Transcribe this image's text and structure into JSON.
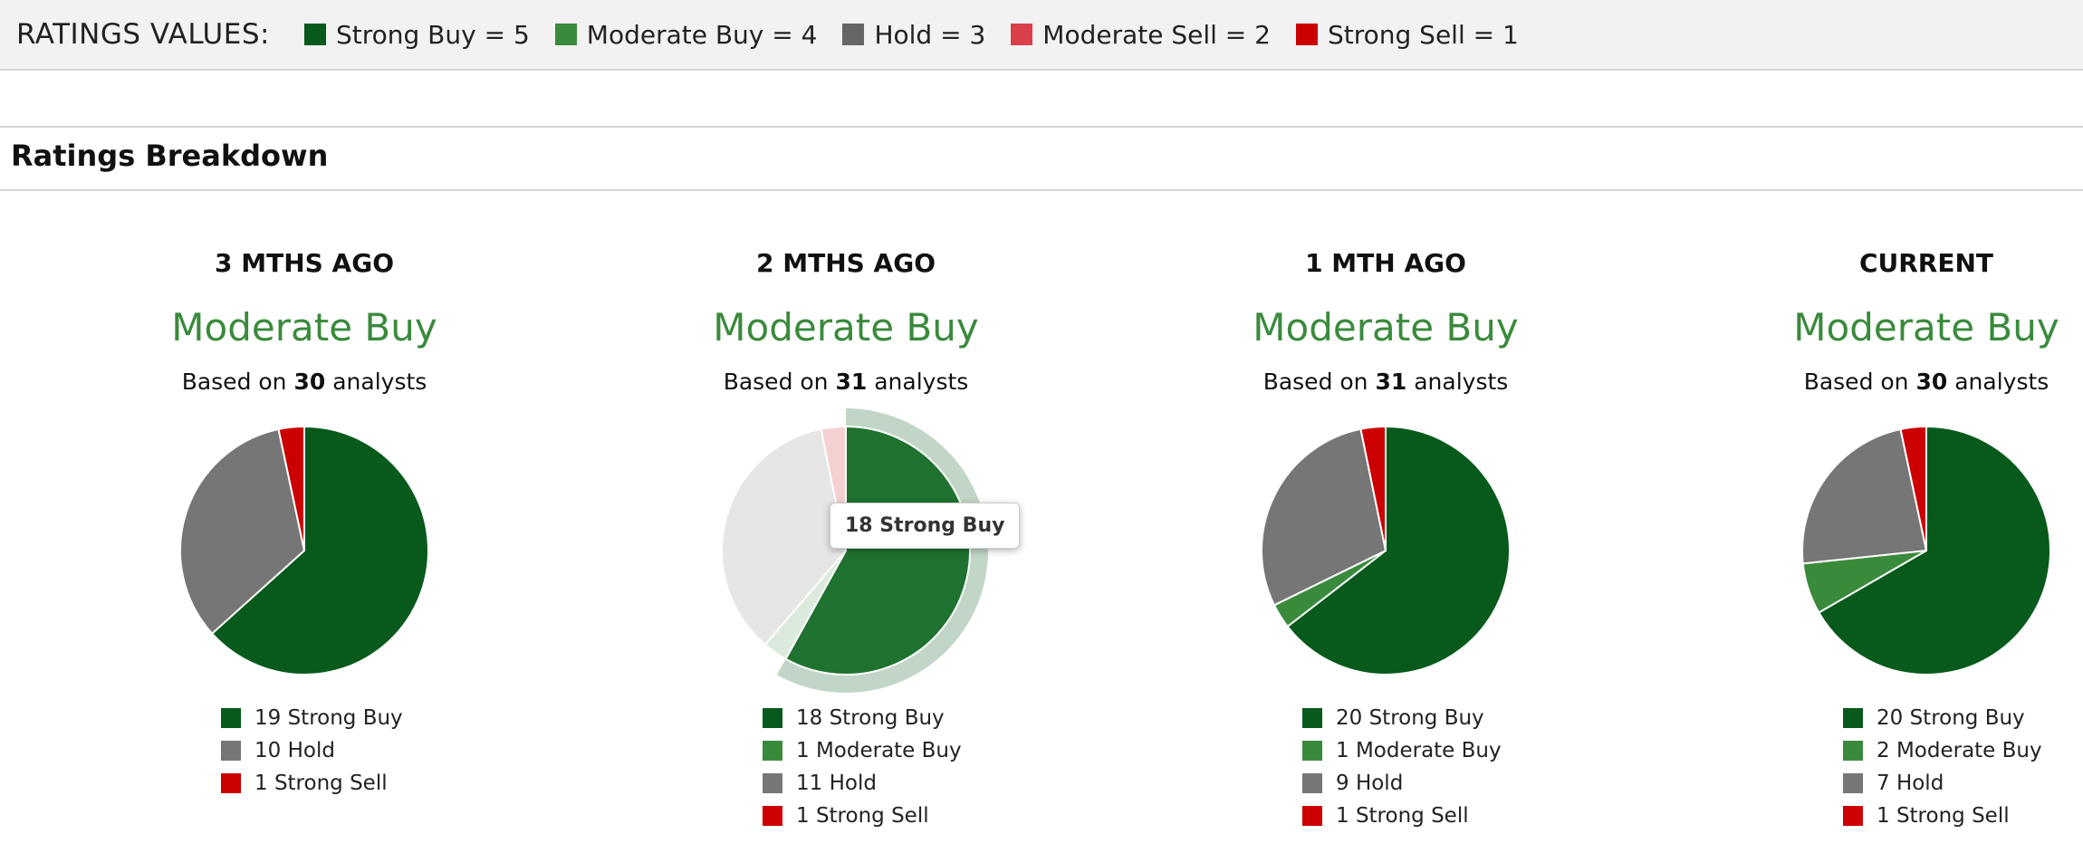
{
  "ratings_values": {
    "title": "RATINGS VALUES:",
    "items": [
      {
        "label": "Strong Buy = 5",
        "color": "#075a1c"
      },
      {
        "label": "Moderate Buy = 4",
        "color": "#3a8a3c"
      },
      {
        "label": "Hold = 3",
        "color": "#666666"
      },
      {
        "label": "Moderate Sell = 2",
        "color": "#d9404a"
      },
      {
        "label": "Strong Sell = 1",
        "color": "#cc0000"
      }
    ]
  },
  "section_title": "Ratings Breakdown",
  "tooltip_text": "18 Strong Buy",
  "chart_data": [
    {
      "type": "pie",
      "title": "3 MTHS AGO",
      "rating": "Moderate Buy",
      "based_prefix": "Based on",
      "analysts": "30",
      "based_suffix": "analysts",
      "slices": [
        {
          "label": "Strong Buy",
          "value": 19,
          "color": "#075a1c",
          "legend": "19 Strong Buy"
        },
        {
          "label": "Hold",
          "value": 10,
          "color": "#767676",
          "legend": "10 Hold"
        },
        {
          "label": "Strong Sell",
          "value": 1,
          "color": "#cc0000",
          "legend": "1 Strong Sell"
        }
      ]
    },
    {
      "type": "pie",
      "title": "2 MTHS AGO",
      "rating": "Moderate Buy",
      "based_prefix": "Based on",
      "analysts": "31",
      "based_suffix": "analysts",
      "hovered": "Strong Buy",
      "slices": [
        {
          "label": "Strong Buy",
          "value": 18,
          "color": "#075a1c",
          "legend": "18 Strong Buy"
        },
        {
          "label": "Moderate Buy",
          "value": 1,
          "color": "#3a8a3c",
          "legend": "1 Moderate Buy"
        },
        {
          "label": "Hold",
          "value": 11,
          "color": "#767676",
          "legend": "11 Hold"
        },
        {
          "label": "Strong Sell",
          "value": 1,
          "color": "#cc0000",
          "legend": "1 Strong Sell"
        }
      ]
    },
    {
      "type": "pie",
      "title": "1 MTH AGO",
      "rating": "Moderate Buy",
      "based_prefix": "Based on",
      "analysts": "31",
      "based_suffix": "analysts",
      "slices": [
        {
          "label": "Strong Buy",
          "value": 20,
          "color": "#075a1c",
          "legend": "20 Strong Buy"
        },
        {
          "label": "Moderate Buy",
          "value": 1,
          "color": "#3a8a3c",
          "legend": "1 Moderate Buy"
        },
        {
          "label": "Hold",
          "value": 9,
          "color": "#767676",
          "legend": "9 Hold"
        },
        {
          "label": "Strong Sell",
          "value": 1,
          "color": "#cc0000",
          "legend": "1 Strong Sell"
        }
      ]
    },
    {
      "type": "pie",
      "title": "CURRENT",
      "rating": "Moderate Buy",
      "based_prefix": "Based on",
      "analysts": "30",
      "based_suffix": "analysts",
      "slices": [
        {
          "label": "Strong Buy",
          "value": 20,
          "color": "#075a1c",
          "legend": "20 Strong Buy"
        },
        {
          "label": "Moderate Buy",
          "value": 2,
          "color": "#3a8a3c",
          "legend": "2 Moderate Buy"
        },
        {
          "label": "Hold",
          "value": 7,
          "color": "#767676",
          "legend": "7 Hold"
        },
        {
          "label": "Strong Sell",
          "value": 1,
          "color": "#cc0000",
          "legend": "1 Strong Sell"
        }
      ]
    }
  ]
}
